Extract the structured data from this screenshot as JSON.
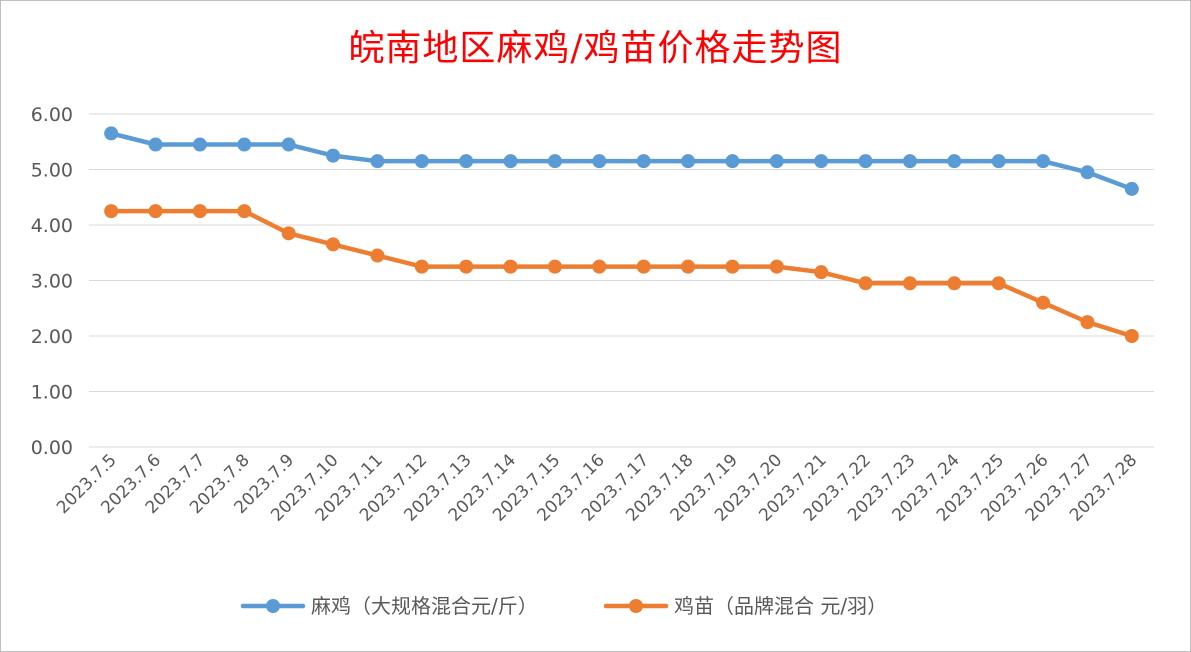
{
  "chart_data": {
    "type": "line",
    "title": "皖南地区麻鸡/鸡苗价格走势图",
    "categories": [
      "2023.7.5",
      "2023.7.6",
      "2023.7.7",
      "2023.7.8",
      "2023.7.9",
      "2023.7.10",
      "2023.7.11",
      "2023.7.12",
      "2023.7.13",
      "2023.7.14",
      "2023.7.15",
      "2023.7.16",
      "2023.7.17",
      "2023.7.18",
      "2023.7.19",
      "2023.7.20",
      "2023.7.21",
      "2023.7.22",
      "2023.7.23",
      "2023.7.24",
      "2023.7.25",
      "2023.7.26",
      "2023.7.27",
      "2023.7.28"
    ],
    "series": [
      {
        "name": "麻鸡（大规格混合元/斤）",
        "color": "#5b9bd5",
        "values": [
          5.65,
          5.45,
          5.45,
          5.45,
          5.45,
          5.25,
          5.15,
          5.15,
          5.15,
          5.15,
          5.15,
          5.15,
          5.15,
          5.15,
          5.15,
          5.15,
          5.15,
          5.15,
          5.15,
          5.15,
          5.15,
          5.15,
          4.95,
          4.65
        ]
      },
      {
        "name": "鸡苗（品牌混合 元/羽）",
        "color": "#ed7d31",
        "values": [
          4.25,
          4.25,
          4.25,
          4.25,
          3.85,
          3.65,
          3.45,
          3.25,
          3.25,
          3.25,
          3.25,
          3.25,
          3.25,
          3.25,
          3.25,
          3.25,
          3.15,
          2.95,
          2.95,
          2.95,
          2.95,
          2.6,
          2.25,
          2.0
        ]
      }
    ],
    "ylim": [
      0,
      6
    ],
    "yticks": [
      "0.00",
      "1.00",
      "2.00",
      "3.00",
      "4.00",
      "5.00",
      "6.00"
    ],
    "grid": true,
    "legend_position": "bottom",
    "title_color": "#ff0000"
  }
}
